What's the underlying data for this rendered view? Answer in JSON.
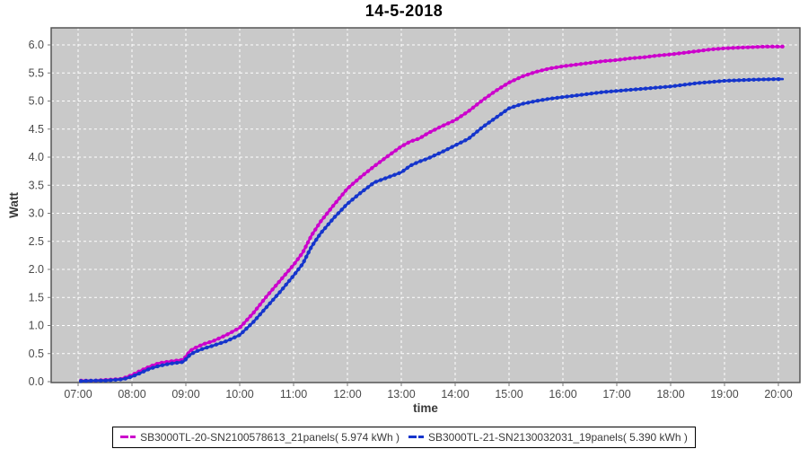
{
  "title": "14-5-2018",
  "colors": {
    "plot_background": "#c9c9c9",
    "plot_border": "#555555",
    "gridline": "#ffffff",
    "tick_label": "#4a4a4a",
    "axis_label": "#3a3a3a",
    "series_a": "#cc00cc",
    "series_b": "#1535cc",
    "legend_border": "#000000",
    "legend_background": "#ffffff"
  },
  "chart_data": {
    "type": "line",
    "title": "14-5-2018",
    "xlabel": "time",
    "ylabel": "Watt",
    "grid": true,
    "legend_position": "bottom",
    "ylim": [
      0.0,
      6.3
    ],
    "y_ticks": [
      0.0,
      0.5,
      1.0,
      1.5,
      2.0,
      2.5,
      3.0,
      3.5,
      4.0,
      4.5,
      5.0,
      5.5,
      6.0
    ],
    "x_ticks": [
      "07:00",
      "08:00",
      "09:00",
      "10:00",
      "11:00",
      "12:00",
      "13:00",
      "14:00",
      "15:00",
      "16:00",
      "17:00",
      "18:00",
      "19:00",
      "20:00"
    ],
    "x_tick_hours": [
      7,
      8,
      9,
      10,
      11,
      12,
      13,
      14,
      15,
      16,
      17,
      18,
      19,
      20
    ],
    "series": [
      {
        "name": "SB3000TL-20-SN2100578613_21panels( 5.974 kWh )",
        "color": "#cc00cc",
        "final_kwh": "5.974 kWh",
        "points": [
          [
            7.05,
            0.02
          ],
          [
            7.3,
            0.02
          ],
          [
            7.5,
            0.03
          ],
          [
            7.8,
            0.05
          ],
          [
            7.9,
            0.08
          ],
          [
            8.0,
            0.12
          ],
          [
            8.17,
            0.2
          ],
          [
            8.33,
            0.27
          ],
          [
            8.5,
            0.33
          ],
          [
            8.7,
            0.36
          ],
          [
            8.95,
            0.39
          ],
          [
            9.0,
            0.45
          ],
          [
            9.08,
            0.55
          ],
          [
            9.17,
            0.6
          ],
          [
            9.33,
            0.67
          ],
          [
            9.5,
            0.72
          ],
          [
            9.75,
            0.83
          ],
          [
            10.0,
            0.96
          ],
          [
            10.25,
            1.22
          ],
          [
            10.5,
            1.52
          ],
          [
            10.75,
            1.8
          ],
          [
            11.0,
            2.08
          ],
          [
            11.17,
            2.3
          ],
          [
            11.33,
            2.6
          ],
          [
            11.5,
            2.85
          ],
          [
            11.75,
            3.15
          ],
          [
            12.0,
            3.44
          ],
          [
            12.25,
            3.65
          ],
          [
            12.5,
            3.84
          ],
          [
            12.75,
            4.02
          ],
          [
            13.0,
            4.19
          ],
          [
            13.17,
            4.28
          ],
          [
            13.33,
            4.33
          ],
          [
            13.5,
            4.43
          ],
          [
            13.75,
            4.55
          ],
          [
            14.0,
            4.66
          ],
          [
            14.25,
            4.82
          ],
          [
            14.5,
            5.01
          ],
          [
            14.75,
            5.18
          ],
          [
            15.0,
            5.33
          ],
          [
            15.25,
            5.44
          ],
          [
            15.5,
            5.52
          ],
          [
            15.75,
            5.58
          ],
          [
            16.0,
            5.62
          ],
          [
            16.25,
            5.65
          ],
          [
            16.5,
            5.68
          ],
          [
            16.75,
            5.71
          ],
          [
            17.0,
            5.73
          ],
          [
            17.25,
            5.76
          ],
          [
            17.5,
            5.78
          ],
          [
            17.75,
            5.81
          ],
          [
            18.0,
            5.83
          ],
          [
            18.25,
            5.86
          ],
          [
            18.5,
            5.89
          ],
          [
            18.75,
            5.92
          ],
          [
            19.0,
            5.94
          ],
          [
            19.25,
            5.95
          ],
          [
            19.5,
            5.96
          ],
          [
            19.75,
            5.97
          ],
          [
            20.0,
            5.97
          ],
          [
            20.08,
            5.97
          ]
        ]
      },
      {
        "name": "SB3000TL-21-SN2130032031_19panels( 5.390 kWh )",
        "color": "#1535cc",
        "final_kwh": "5.390 kWh",
        "points": [
          [
            7.05,
            0.01
          ],
          [
            7.3,
            0.02
          ],
          [
            7.5,
            0.02
          ],
          [
            7.8,
            0.04
          ],
          [
            7.9,
            0.06
          ],
          [
            8.0,
            0.09
          ],
          [
            8.17,
            0.16
          ],
          [
            8.33,
            0.23
          ],
          [
            8.5,
            0.28
          ],
          [
            8.7,
            0.32
          ],
          [
            8.95,
            0.35
          ],
          [
            9.0,
            0.4
          ],
          [
            9.08,
            0.48
          ],
          [
            9.17,
            0.53
          ],
          [
            9.33,
            0.59
          ],
          [
            9.5,
            0.64
          ],
          [
            9.75,
            0.72
          ],
          [
            10.0,
            0.83
          ],
          [
            10.25,
            1.06
          ],
          [
            10.5,
            1.33
          ],
          [
            10.75,
            1.6
          ],
          [
            11.0,
            1.89
          ],
          [
            11.17,
            2.1
          ],
          [
            11.33,
            2.4
          ],
          [
            11.5,
            2.64
          ],
          [
            11.75,
            2.92
          ],
          [
            12.0,
            3.17
          ],
          [
            12.25,
            3.37
          ],
          [
            12.5,
            3.55
          ],
          [
            12.75,
            3.64
          ],
          [
            13.0,
            3.73
          ],
          [
            13.17,
            3.85
          ],
          [
            13.33,
            3.92
          ],
          [
            13.5,
            3.98
          ],
          [
            13.75,
            4.09
          ],
          [
            14.0,
            4.21
          ],
          [
            14.25,
            4.33
          ],
          [
            14.5,
            4.53
          ],
          [
            14.75,
            4.7
          ],
          [
            15.0,
            4.87
          ],
          [
            15.25,
            4.95
          ],
          [
            15.5,
            5.0
          ],
          [
            15.75,
            5.04
          ],
          [
            16.0,
            5.07
          ],
          [
            16.25,
            5.1
          ],
          [
            16.5,
            5.13
          ],
          [
            16.75,
            5.16
          ],
          [
            17.0,
            5.18
          ],
          [
            17.25,
            5.2
          ],
          [
            17.5,
            5.22
          ],
          [
            17.75,
            5.24
          ],
          [
            18.0,
            5.26
          ],
          [
            18.25,
            5.29
          ],
          [
            18.5,
            5.32
          ],
          [
            18.75,
            5.34
          ],
          [
            19.0,
            5.36
          ],
          [
            19.25,
            5.37
          ],
          [
            19.5,
            5.38
          ],
          [
            19.75,
            5.385
          ],
          [
            20.0,
            5.39
          ],
          [
            20.08,
            5.39
          ]
        ]
      }
    ]
  }
}
